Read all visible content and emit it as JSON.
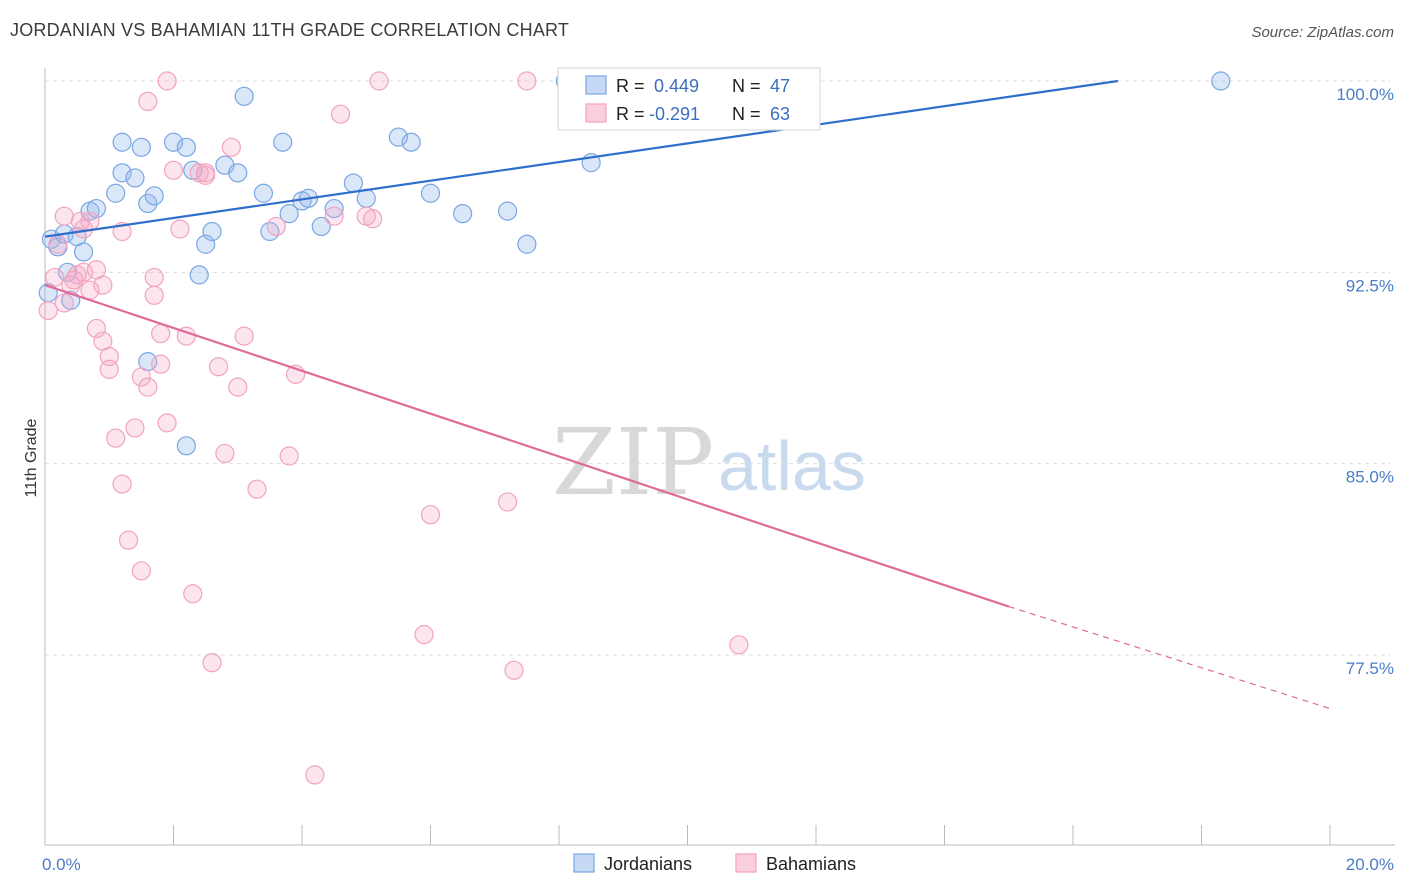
{
  "title": "JORDANIAN VS BAHAMIAN 11TH GRADE CORRELATION CHART",
  "source": "Source: ZipAtlas.com",
  "watermark": {
    "zip": "ZIP",
    "atlas": "atlas"
  },
  "colors": {
    "blue": "#7aa6e3",
    "blue_line": "#2f6fcc",
    "pink": "#f2a3be",
    "pink_line": "#e06a98",
    "grid": "#dddddd",
    "tick_text": "#4a7cc7"
  },
  "legend": {
    "rows": [
      {
        "r_label": "R =",
        "r_value": "0.449",
        "n_label": "N =",
        "n_value": "47"
      },
      {
        "r_label": "R =",
        "r_value": "-0.291",
        "n_label": "N =",
        "n_value": "63"
      }
    ]
  },
  "bottom_legend": [
    "Jordanians",
    "Bahamians"
  ],
  "chart_data": {
    "type": "scatter",
    "title": "JORDANIAN VS BAHAMIAN 11TH GRADE CORRELATION CHART",
    "xlabel": "",
    "ylabel": "11th Grade",
    "xlim": [
      0,
      20
    ],
    "ylim": [
      71,
      101
    ],
    "x_ticks": [
      "0.0%",
      "20.0%"
    ],
    "y_ticks": [
      {
        "value": 100,
        "label": "100.0%"
      },
      {
        "value": 92.5,
        "label": "92.5%"
      },
      {
        "value": 85,
        "label": "85.0%"
      },
      {
        "value": 77.5,
        "label": "77.5%"
      }
    ],
    "grid": true,
    "series": [
      {
        "name": "Jordanians",
        "color": "#7aa6e3",
        "trend": {
          "x": [
            0,
            16.7
          ],
          "y": [
            93.9,
            100.0
          ]
        },
        "points": [
          [
            0.1,
            93.8
          ],
          [
            0.2,
            93.5
          ],
          [
            0.3,
            94.0
          ],
          [
            0.35,
            92.5
          ],
          [
            0.4,
            91.4
          ],
          [
            0.5,
            93.9
          ],
          [
            0.6,
            93.3
          ],
          [
            0.7,
            94.9
          ],
          [
            0.8,
            95.0
          ],
          [
            1.1,
            95.6
          ],
          [
            1.2,
            96.4
          ],
          [
            1.4,
            96.2
          ],
          [
            1.5,
            97.4
          ],
          [
            1.6,
            95.2
          ],
          [
            1.7,
            95.5
          ],
          [
            2.0,
            97.6
          ],
          [
            1.2,
            97.6
          ],
          [
            2.2,
            97.4
          ],
          [
            2.3,
            96.5
          ],
          [
            2.5,
            93.6
          ],
          [
            2.6,
            94.1
          ],
          [
            2.8,
            96.7
          ],
          [
            3.0,
            96.4
          ],
          [
            3.1,
            99.4
          ],
          [
            3.4,
            95.6
          ],
          [
            3.5,
            94.1
          ],
          [
            3.7,
            97.6
          ],
          [
            3.8,
            94.8
          ],
          [
            4.0,
            95.3
          ],
          [
            4.1,
            95.4
          ],
          [
            4.3,
            94.3
          ],
          [
            4.5,
            95.0
          ],
          [
            4.8,
            96.0
          ],
          [
            5.0,
            95.4
          ],
          [
            5.5,
            97.8
          ],
          [
            5.7,
            97.6
          ],
          [
            6.0,
            95.6
          ],
          [
            6.5,
            94.8
          ],
          [
            7.2,
            94.9
          ],
          [
            7.5,
            93.6
          ],
          [
            8.1,
            100.0
          ],
          [
            8.5,
            96.8
          ],
          [
            1.6,
            89.0
          ],
          [
            2.2,
            85.7
          ],
          [
            2.4,
            92.4
          ],
          [
            18.3,
            100.0
          ],
          [
            0.05,
            91.7
          ]
        ]
      },
      {
        "name": "Bahamians",
        "color": "#f2a3be",
        "trend": {
          "x": [
            0,
            15.0
          ],
          "y": [
            92.0,
            79.4
          ]
        },
        "trend_dashed": {
          "x": [
            15.0,
            20.0
          ],
          "y": [
            79.4,
            75.4
          ]
        },
        "points": [
          [
            0.05,
            91.0
          ],
          [
            0.15,
            92.3
          ],
          [
            0.2,
            93.6
          ],
          [
            0.3,
            91.3
          ],
          [
            0.4,
            92.0
          ],
          [
            0.5,
            92.4
          ],
          [
            0.55,
            94.5
          ],
          [
            0.6,
            92.5
          ],
          [
            0.7,
            94.5
          ],
          [
            0.8,
            92.6
          ],
          [
            0.9,
            92.0
          ],
          [
            0.8,
            90.3
          ],
          [
            0.9,
            89.8
          ],
          [
            1.0,
            88.7
          ],
          [
            1.0,
            89.2
          ],
          [
            1.1,
            86.0
          ],
          [
            1.2,
            84.2
          ],
          [
            1.3,
            82.0
          ],
          [
            1.4,
            86.4
          ],
          [
            1.5,
            80.8
          ],
          [
            1.5,
            88.4
          ],
          [
            1.6,
            88.0
          ],
          [
            1.7,
            91.6
          ],
          [
            1.8,
            90.1
          ],
          [
            1.8,
            88.9
          ],
          [
            1.9,
            86.6
          ],
          [
            2.0,
            96.5
          ],
          [
            2.1,
            94.2
          ],
          [
            2.2,
            90.0
          ],
          [
            2.3,
            79.9
          ],
          [
            2.4,
            96.4
          ],
          [
            2.5,
            96.3
          ],
          [
            2.6,
            77.2
          ],
          [
            2.7,
            88.8
          ],
          [
            2.8,
            85.4
          ],
          [
            2.9,
            97.4
          ],
          [
            3.0,
            88.0
          ],
          [
            3.1,
            90.0
          ],
          [
            3.3,
            84.0
          ],
          [
            3.6,
            94.3
          ],
          [
            3.8,
            85.3
          ],
          [
            3.9,
            88.5
          ],
          [
            4.2,
            72.8
          ],
          [
            4.5,
            94.7
          ],
          [
            4.6,
            98.7
          ],
          [
            5.0,
            94.7
          ],
          [
            5.1,
            94.6
          ],
          [
            5.2,
            100.0
          ],
          [
            5.9,
            78.3
          ],
          [
            6.0,
            83.0
          ],
          [
            7.2,
            83.5
          ],
          [
            7.3,
            76.9
          ],
          [
            7.5,
            100.0
          ],
          [
            10.8,
            77.9
          ],
          [
            1.6,
            99.2
          ],
          [
            1.9,
            100.0
          ],
          [
            0.6,
            94.2
          ],
          [
            1.2,
            94.1
          ],
          [
            1.7,
            92.3
          ],
          [
            2.5,
            96.4
          ],
          [
            0.3,
            94.7
          ],
          [
            0.7,
            91.8
          ],
          [
            0.45,
            92.2
          ]
        ]
      }
    ]
  }
}
